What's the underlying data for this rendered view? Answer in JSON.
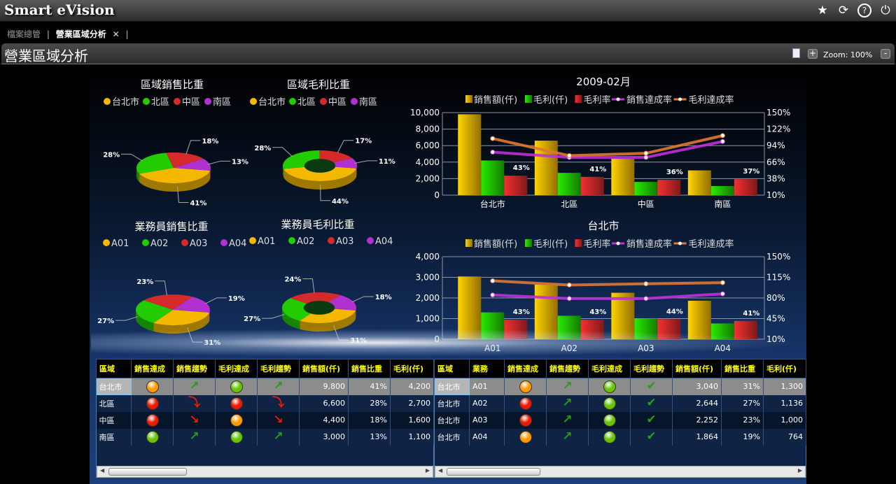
{
  "app": {
    "title": "Smart eVision",
    "icons": [
      "star-icon",
      "refresh-icon",
      "help-icon",
      "power-icon"
    ]
  },
  "tabs": {
    "items": [
      {
        "label": "檔案總管",
        "active": false
      },
      {
        "label": "營業區域分析",
        "active": true
      }
    ],
    "close": "✕",
    "sep": "|"
  },
  "page": {
    "title": "營業區域分析",
    "zoom_label": "Zoom: 100%",
    "zoom_in": "+",
    "zoom_out": "-"
  },
  "chart_data": [
    {
      "type": "pie",
      "title": "區域銷售比重",
      "labels": [
        "台北市",
        "北區",
        "中區",
        "南區"
      ],
      "values": [
        41,
        28,
        18,
        13
      ],
      "colors": [
        "#f5b800",
        "#22cc00",
        "#d42a2a",
        "#b030d0"
      ],
      "donut": false
    },
    {
      "type": "pie",
      "title": "區域毛利比重",
      "labels": [
        "台北市",
        "北區",
        "中區",
        "南區"
      ],
      "values": [
        44,
        28,
        17,
        11
      ],
      "colors": [
        "#f5b800",
        "#22cc00",
        "#d42a2a",
        "#b030d0"
      ],
      "donut": true
    },
    {
      "type": "pie",
      "title": "業務員銷售比重",
      "labels": [
        "A01",
        "A02",
        "A03",
        "A04"
      ],
      "values": [
        31,
        27,
        23,
        19
      ],
      "colors": [
        "#f5b800",
        "#22cc00",
        "#d42a2a",
        "#b030d0"
      ],
      "donut": false
    },
    {
      "type": "pie",
      "title": "業務員毛利比重",
      "labels": [
        "A01",
        "A02",
        "A03",
        "A04"
      ],
      "values": [
        31,
        27,
        24,
        18
      ],
      "colors": [
        "#f5b800",
        "#22cc00",
        "#d42a2a",
        "#b030d0"
      ],
      "donut": true
    },
    {
      "type": "bar",
      "title": "2009-02月",
      "categories": [
        "台北市",
        "北區",
        "中區",
        "南區"
      ],
      "ylim": [
        0,
        10000
      ],
      "yticks": [
        0,
        2000,
        4000,
        6000,
        8000,
        10000
      ],
      "y2lim": [
        10,
        150
      ],
      "y2ticks": [
        10,
        38,
        66,
        94,
        122,
        150
      ],
      "series": [
        {
          "name": "銷售額(仟)",
          "kind": "bar",
          "axis": "left",
          "color": "#f5b800",
          "values": [
            9800,
            6600,
            4400,
            3000
          ]
        },
        {
          "name": "毛利(仟)",
          "kind": "bar",
          "axis": "left",
          "color": "#22cc00",
          "values": [
            4200,
            2700,
            1600,
            1100
          ]
        },
        {
          "name": "毛利率",
          "kind": "bar",
          "axis": "right",
          "color": "#d42a2a",
          "values": [
            43,
            41,
            36,
            37
          ]
        },
        {
          "name": "銷售達成率",
          "kind": "line",
          "axis": "right",
          "color": "#c030d8",
          "values": [
            83,
            74,
            74,
            101
          ]
        },
        {
          "name": "毛利達成率",
          "kind": "line",
          "axis": "right",
          "color": "#e07830",
          "values": [
            106,
            77,
            81,
            111
          ]
        }
      ]
    },
    {
      "type": "bar",
      "title": "台北市",
      "categories": [
        "A01",
        "A02",
        "A03",
        "A04"
      ],
      "ylim": [
        0,
        4000
      ],
      "yticks": [
        0,
        1000,
        2000,
        3000,
        4000
      ],
      "y2lim": [
        10,
        150
      ],
      "y2ticks": [
        10,
        45,
        80,
        115,
        150
      ],
      "series": [
        {
          "name": "銷售額(仟)",
          "kind": "bar",
          "axis": "left",
          "color": "#f5b800",
          "values": [
            3040,
            2644,
            2252,
            1864
          ]
        },
        {
          "name": "毛利(仟)",
          "kind": "bar",
          "axis": "left",
          "color": "#22cc00",
          "values": [
            1300,
            1136,
            1000,
            764
          ]
        },
        {
          "name": "毛利率",
          "kind": "bar",
          "axis": "right",
          "color": "#d42a2a",
          "values": [
            43,
            43,
            44,
            41
          ]
        },
        {
          "name": "銷售達成率",
          "kind": "line",
          "axis": "right",
          "color": "#c030d8",
          "values": [
            85,
            79,
            79,
            87
          ]
        },
        {
          "name": "毛利達成率",
          "kind": "line",
          "axis": "right",
          "color": "#e07830",
          "values": [
            109,
            102,
            104,
            106
          ]
        }
      ]
    }
  ],
  "tables": {
    "left": {
      "columns": [
        "區域",
        "銷售達成",
        "銷售趨勢",
        "毛利達成",
        "毛利趨勢",
        "銷售額(仟)",
        "銷售比重",
        "毛利(仟)"
      ],
      "rows": [
        [
          "台北市",
          "orange",
          "up",
          "green",
          "up",
          "9,800",
          "41%",
          "4,200"
        ],
        [
          "北區",
          "red",
          "peak-down",
          "red",
          "peak-down",
          "6,600",
          "28%",
          "2,700"
        ],
        [
          "中區",
          "red",
          "down",
          "orange",
          "down",
          "4,400",
          "18%",
          "1,600"
        ],
        [
          "南區",
          "green",
          "up",
          "green",
          "up",
          "3,000",
          "13%",
          "1,100"
        ]
      ]
    },
    "right": {
      "columns": [
        "區域",
        "業務",
        "銷售達成",
        "銷售趨勢",
        "毛利達成",
        "毛利趨勢",
        "銷售額(仟)",
        "銷售比重",
        "毛利(仟)"
      ],
      "rows": [
        [
          "台北市",
          "A01",
          "orange",
          "up",
          "green",
          "check-up",
          "3,040",
          "31%",
          "1,300"
        ],
        [
          "台北市",
          "A02",
          "red",
          "up",
          "green",
          "check-up",
          "2,644",
          "27%",
          "1,136"
        ],
        [
          "台北市",
          "A03",
          "red",
          "up",
          "green",
          "check-up",
          "2,252",
          "23%",
          "1,000"
        ],
        [
          "台北市",
          "A04",
          "orange",
          "up",
          "green",
          "check-up",
          "1,864",
          "19%",
          "764"
        ]
      ]
    }
  },
  "status_colors": {
    "orange": "#ff9a00",
    "red": "#ee1a00",
    "green": "#66c400"
  }
}
